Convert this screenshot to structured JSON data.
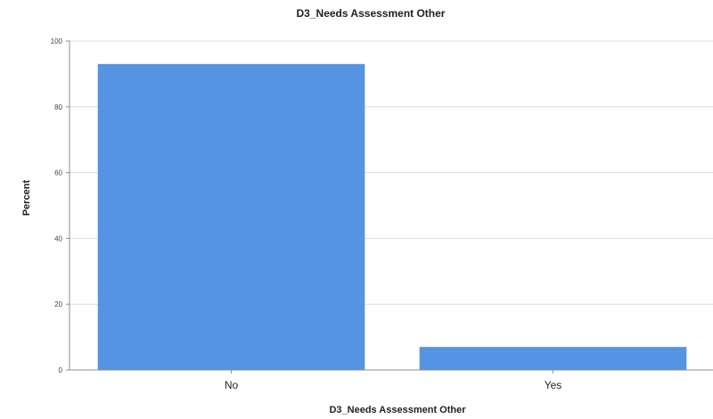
{
  "chart_data": {
    "type": "bar",
    "title": "D3_Needs Assessment Other",
    "xlabel": "D3_Needs Assessment Other",
    "ylabel": "Percent",
    "categories": [
      "No",
      "Yes"
    ],
    "values": [
      93,
      7
    ],
    "ylim": [
      0,
      100
    ],
    "yticks": [
      0,
      20,
      40,
      60,
      80,
      100
    ],
    "grid": true,
    "bar_color": "#5594e3"
  }
}
